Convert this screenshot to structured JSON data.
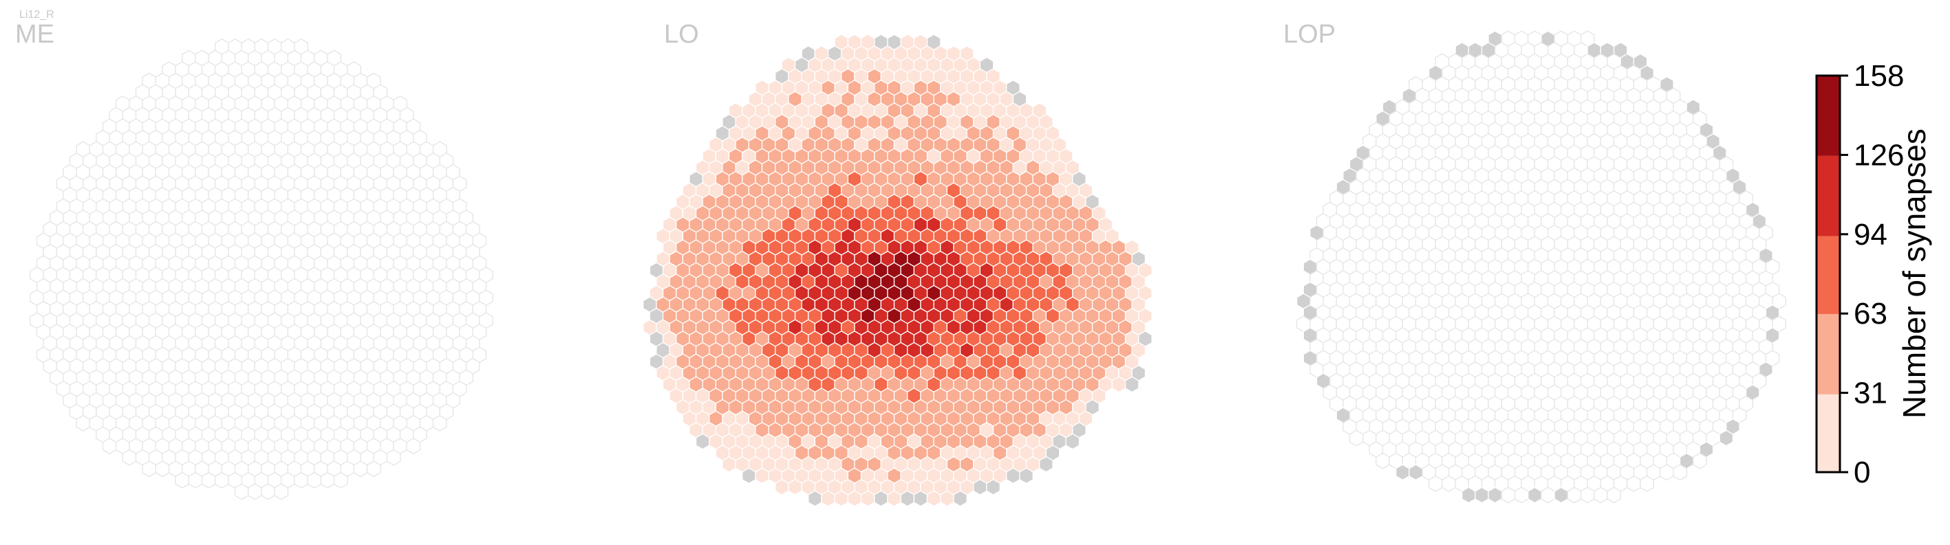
{
  "chart_data": {
    "type": "heatmap",
    "cell_type": "Li12_R",
    "panels": [
      {
        "name": "ME",
        "empty_cells": "all columns without synapses (no data)",
        "colored_cells": 0
      },
      {
        "name": "LO",
        "note": "columns colored by synapse count; densest band across the central rows"
      },
      {
        "name": "LOP",
        "empty_cells": "no synapses; columns at the rim highlighted in grey"
      }
    ],
    "colorbar": {
      "label": "Number of synapses",
      "ticks": [
        "0",
        "31",
        "63",
        "94",
        "126",
        "158"
      ],
      "bins": [
        {
          "range": [
            0,
            31
          ],
          "color": "#fde3d8"
        },
        {
          "range": [
            31,
            63
          ],
          "color": "#f9ad92"
        },
        {
          "range": [
            63,
            94
          ],
          "color": "#f4694b"
        },
        {
          "range": [
            94,
            126
          ],
          "color": "#d42b26"
        },
        {
          "range": [
            126,
            158
          ],
          "color": "#990c13"
        }
      ],
      "vmin": 0,
      "vmax": 158
    },
    "colors": {
      "empty_fill": "#ffffff",
      "empty_edge": "#e6e6e6",
      "highlight_fill": "#d0d0d0",
      "cell_edge": "#ffffff"
    }
  }
}
